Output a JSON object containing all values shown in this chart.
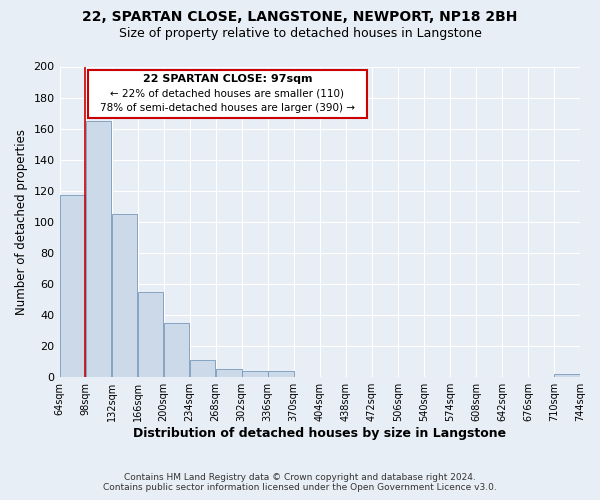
{
  "title": "22, SPARTAN CLOSE, LANGSTONE, NEWPORT, NP18 2BH",
  "subtitle": "Size of property relative to detached houses in Langstone",
  "xlabel": "Distribution of detached houses by size in Langstone",
  "ylabel": "Number of detached properties",
  "footer_line1": "Contains HM Land Registry data © Crown copyright and database right 2024.",
  "footer_line2": "Contains public sector information licensed under the Open Government Licence v3.0.",
  "bin_edges": [
    64,
    98,
    132,
    166,
    200,
    234,
    268,
    302,
    336,
    370,
    404,
    438,
    472,
    506,
    540,
    574,
    608,
    642,
    676,
    710,
    744
  ],
  "bin_labels": [
    "64sqm",
    "98sqm",
    "132sqm",
    "166sqm",
    "200sqm",
    "234sqm",
    "268sqm",
    "302sqm",
    "336sqm",
    "370sqm",
    "404sqm",
    "438sqm",
    "472sqm",
    "506sqm",
    "540sqm",
    "574sqm",
    "608sqm",
    "642sqm",
    "676sqm",
    "710sqm",
    "744sqm"
  ],
  "counts": [
    117,
    165,
    105,
    55,
    35,
    11,
    5,
    4,
    4,
    0,
    0,
    0,
    0,
    0,
    0,
    0,
    0,
    0,
    0,
    2,
    0
  ],
  "bar_color": "#ccd9e8",
  "bar_edge_color": "#7799bb",
  "reference_line_x": 97,
  "reference_line_color": "#cc0000",
  "annotation_title": "22 SPARTAN CLOSE: 97sqm",
  "annotation_line1": "← 22% of detached houses are smaller (110)",
  "annotation_line2": "78% of semi-detached houses are larger (390) →",
  "annotation_box_color": "#cc0000",
  "ylim": [
    0,
    200
  ],
  "yticks": [
    0,
    20,
    40,
    60,
    80,
    100,
    120,
    140,
    160,
    180,
    200
  ],
  "bg_color": "#e8eef5",
  "plot_bg_color": "#e8eef5",
  "grid_color": "#ffffff",
  "title_fontsize": 10,
  "subtitle_fontsize": 9
}
